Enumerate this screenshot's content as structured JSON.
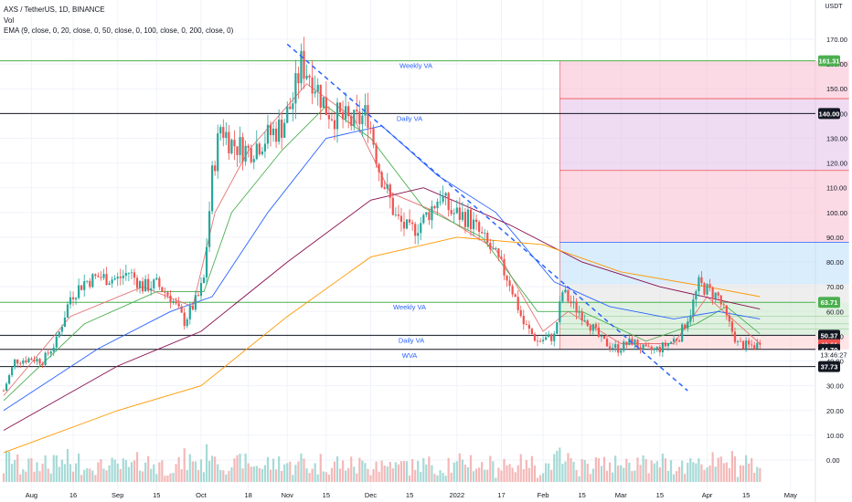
{
  "header": {
    "title": "AXS / TetherUS, 1D, BINANCE",
    "vol_label": "Vol",
    "ema_label": "EMA (9, close, 0, 20, close, 0, 50, close, 0, 100, close, 0, 200, close, 0)"
  },
  "currency": "USDT",
  "countdown": "13:46:27",
  "chart_data": {
    "type": "candlestick",
    "title": "AXS / TetherUS, 1D, BINANCE",
    "ylim": [
      -5,
      172
    ],
    "y_ticks": [
      0,
      10,
      20,
      30,
      40,
      50,
      60,
      70,
      80,
      90,
      100,
      110,
      120,
      130,
      140,
      150,
      160,
      170
    ],
    "y_tick_labels": [
      "0.00",
      "10.00",
      "20.00",
      "30.00",
      "40.00",
      "50.00",
      "60.00",
      "70.00",
      "80.00",
      "90.00",
      "100.00",
      "110.00",
      "120.00",
      "130.00",
      "140.00",
      "150.00",
      "160.00",
      "170.00"
    ],
    "x_ticks": [
      {
        "label": "Aug",
        "date": "2021-08-01"
      },
      {
        "label": "16",
        "date": "2021-08-16"
      },
      {
        "label": "Sep",
        "date": "2021-09-01"
      },
      {
        "label": "15",
        "date": "2021-09-15"
      },
      {
        "label": "Oct",
        "date": "2021-10-01"
      },
      {
        "label": "18",
        "date": "2021-10-18"
      },
      {
        "label": "Nov",
        "date": "2021-11-01"
      },
      {
        "label": "15",
        "date": "2021-11-15"
      },
      {
        "label": "Dec",
        "date": "2021-12-01"
      },
      {
        "label": "15",
        "date": "2021-12-15"
      },
      {
        "label": "2022",
        "date": "2022-01-01"
      },
      {
        "label": "17",
        "date": "2022-01-17"
      },
      {
        "label": "Feb",
        "date": "2022-02-01"
      },
      {
        "label": "15",
        "date": "2022-02-15"
      },
      {
        "label": "Mar",
        "date": "2022-03-01"
      },
      {
        "label": "15",
        "date": "2022-03-15"
      },
      {
        "label": "Apr",
        "date": "2022-04-01"
      },
      {
        "label": "15",
        "date": "2022-04-15"
      },
      {
        "label": "May",
        "date": "2022-05-01"
      }
    ],
    "price_path": [
      [
        "2021-07-22",
        28
      ],
      [
        "2021-07-26",
        40
      ],
      [
        "2021-08-01",
        41
      ],
      [
        "2021-08-05",
        40
      ],
      [
        "2021-08-10",
        48
      ],
      [
        "2021-08-15",
        66
      ],
      [
        "2021-08-20",
        72
      ],
      [
        "2021-08-25",
        74
      ],
      [
        "2021-09-01",
        73
      ],
      [
        "2021-09-05",
        76
      ],
      [
        "2021-09-10",
        70
      ],
      [
        "2021-09-15",
        71
      ],
      [
        "2021-09-20",
        66
      ],
      [
        "2021-09-25",
        56
      ],
      [
        "2021-09-30",
        66
      ],
      [
        "2021-10-02",
        73
      ],
      [
        "2021-10-05",
        115
      ],
      [
        "2021-10-08",
        135
      ],
      [
        "2021-10-12",
        128
      ],
      [
        "2021-10-18",
        125
      ],
      [
        "2021-10-24",
        130
      ],
      [
        "2021-10-30",
        135
      ],
      [
        "2021-11-03",
        145
      ],
      [
        "2021-11-06",
        160
      ],
      [
        "2021-11-10",
        155
      ],
      [
        "2021-11-15",
        142
      ],
      [
        "2021-11-20",
        138
      ],
      [
        "2021-11-25",
        136
      ],
      [
        "2021-11-30",
        140
      ],
      [
        "2021-12-04",
        118
      ],
      [
        "2021-12-10",
        98
      ],
      [
        "2021-12-15",
        92
      ],
      [
        "2021-12-20",
        97
      ],
      [
        "2021-12-26",
        107
      ],
      [
        "2021-12-30",
        100
      ],
      [
        "2022-01-05",
        98
      ],
      [
        "2022-01-10",
        90
      ],
      [
        "2022-01-15",
        82
      ],
      [
        "2022-01-20",
        72
      ],
      [
        "2022-01-25",
        55
      ],
      [
        "2022-01-30",
        48
      ],
      [
        "2022-02-05",
        50
      ],
      [
        "2022-02-08",
        68
      ],
      [
        "2022-02-12",
        62
      ],
      [
        "2022-02-16",
        58
      ],
      [
        "2022-02-22",
        48
      ],
      [
        "2022-02-28",
        45
      ],
      [
        "2022-03-05",
        48
      ],
      [
        "2022-03-10",
        44
      ],
      [
        "2022-03-15",
        45
      ],
      [
        "2022-03-22",
        50
      ],
      [
        "2022-03-26",
        60
      ],
      [
        "2022-03-29",
        71
      ],
      [
        "2022-04-02",
        68
      ],
      [
        "2022-04-05",
        66
      ],
      [
        "2022-04-08",
        57
      ],
      [
        "2022-04-12",
        47
      ],
      [
        "2022-04-16",
        46
      ],
      [
        "2022-04-20",
        46.61
      ]
    ],
    "ema_series": [
      {
        "color": "#e57373",
        "points": [
          [
            "2021-07-22",
            26
          ],
          [
            "2021-08-15",
            58
          ],
          [
            "2021-09-10",
            70
          ],
          [
            "2021-09-28",
            62
          ],
          [
            "2021-10-06",
            100
          ],
          [
            "2021-10-18",
            125
          ],
          [
            "2021-11-08",
            152
          ],
          [
            "2021-11-25",
            138
          ],
          [
            "2021-12-08",
            108
          ],
          [
            "2021-12-25",
            100
          ],
          [
            "2022-01-15",
            85
          ],
          [
            "2022-02-01",
            52
          ],
          [
            "2022-02-10",
            60
          ],
          [
            "2022-03-01",
            47
          ],
          [
            "2022-03-20",
            47
          ],
          [
            "2022-04-01",
            66
          ],
          [
            "2022-04-20",
            47
          ]
        ]
      },
      {
        "color": "#4caf50",
        "points": [
          [
            "2021-07-22",
            24
          ],
          [
            "2021-08-20",
            55
          ],
          [
            "2021-09-15",
            68
          ],
          [
            "2021-10-02",
            68
          ],
          [
            "2021-10-12",
            100
          ],
          [
            "2021-10-30",
            125
          ],
          [
            "2021-11-15",
            143
          ],
          [
            "2021-12-01",
            130
          ],
          [
            "2021-12-20",
            102
          ],
          [
            "2022-01-10",
            90
          ],
          [
            "2022-01-30",
            60
          ],
          [
            "2022-02-15",
            60
          ],
          [
            "2022-03-10",
            48
          ],
          [
            "2022-03-28",
            55
          ],
          [
            "2022-04-08",
            62
          ],
          [
            "2022-04-20",
            51
          ]
        ]
      },
      {
        "color": "#2962ff",
        "points": [
          [
            "2021-07-22",
            20
          ],
          [
            "2021-08-25",
            45
          ],
          [
            "2021-09-20",
            60
          ],
          [
            "2021-10-05",
            66
          ],
          [
            "2021-10-25",
            100
          ],
          [
            "2021-11-15",
            130
          ],
          [
            "2021-12-05",
            135
          ],
          [
            "2021-12-25",
            115
          ],
          [
            "2022-01-15",
            100
          ],
          [
            "2022-02-05",
            72
          ],
          [
            "2022-02-25",
            62
          ],
          [
            "2022-03-20",
            57
          ],
          [
            "2022-04-05",
            60
          ],
          [
            "2022-04-20",
            57
          ]
        ]
      },
      {
        "color": "#880e4f",
        "points": [
          [
            "2021-07-22",
            12
          ],
          [
            "2021-09-01",
            38
          ],
          [
            "2021-10-01",
            52
          ],
          [
            "2021-11-01",
            80
          ],
          [
            "2021-12-01",
            105
          ],
          [
            "2021-12-20",
            110
          ],
          [
            "2022-01-20",
            95
          ],
          [
            "2022-02-15",
            80
          ],
          [
            "2022-03-15",
            70
          ],
          [
            "2022-04-20",
            61
          ]
        ]
      },
      {
        "color": "#ff9800",
        "points": [
          [
            "2021-07-22",
            3
          ],
          [
            "2021-09-01",
            20
          ],
          [
            "2021-10-01",
            30
          ],
          [
            "2021-11-01",
            58
          ],
          [
            "2021-12-01",
            82
          ],
          [
            "2022-01-01",
            90
          ],
          [
            "2022-02-01",
            87
          ],
          [
            "2022-03-01",
            76
          ],
          [
            "2022-04-01",
            70
          ],
          [
            "2022-04-20",
            66
          ]
        ]
      }
    ],
    "trendline": {
      "color": "#2962ff",
      "style": "dashed",
      "from": [
        "2021-11-01",
        168
      ],
      "to": [
        "2022-03-25",
        28
      ]
    },
    "projection_box": {
      "from": "2022-02-07",
      "to": "2022-05-22"
    },
    "horizontal_levels": [
      {
        "price": 161.31,
        "color": "#4caf50",
        "label": "Weekly VA"
      },
      {
        "price": 140.0,
        "color": "#131722",
        "label": "Daily VA"
      },
      {
        "price": 63.71,
        "color": "#4caf50",
        "label": "Weekly VA"
      },
      {
        "price": 50.37,
        "color": "#131722",
        "label": ""
      },
      {
        "price": 44.7,
        "color": "#131722",
        "label": ""
      },
      {
        "price": 37.73,
        "color": "#131722",
        "label": ""
      }
    ],
    "level_annotations": [
      {
        "text": "Weekly VA",
        "price": 161.31
      },
      {
        "text": "Daily VA",
        "price": 140.0
      },
      {
        "text": "Weekly VA",
        "price": 63.71
      },
      {
        "text": "Daily VA",
        "price": 50.37
      },
      {
        "text": "WVA",
        "price": 44.7
      }
    ],
    "price_badges": [
      {
        "value": "161.31",
        "price": 161.31,
        "bg": "#4caf50",
        "fg": "#ffffff"
      },
      {
        "value": "140.00",
        "price": 140.0,
        "bg": "#131722",
        "fg": "#ffffff"
      },
      {
        "value": "63.71",
        "price": 63.71,
        "bg": "#4caf50",
        "fg": "#ffffff"
      },
      {
        "value": "50.37",
        "price": 50.37,
        "bg": "#131722",
        "fg": "#ffffff"
      },
      {
        "value": "46.61",
        "price": 46.61,
        "bg": "#ef5350",
        "fg": "#ffffff"
      },
      {
        "value": "44.70",
        "price": 44.7,
        "bg": "#131722",
        "fg": "#ffffff"
      },
      {
        "value": "37.73",
        "price": 37.73,
        "bg": "#131722",
        "fg": "#ffffff"
      }
    ],
    "last_price": 46.61,
    "colors": {
      "up": "#26a69a",
      "down": "#ef5350"
    }
  }
}
